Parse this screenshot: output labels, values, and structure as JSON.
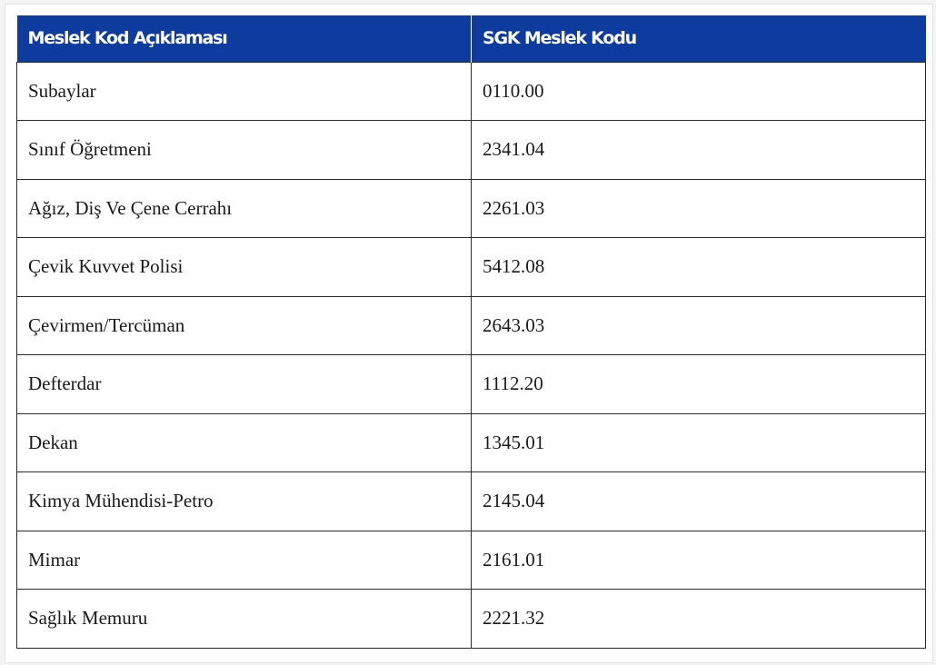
{
  "table": {
    "headers": [
      "Meslek Kod Açıklaması",
      "SGK Meslek Kodu"
    ],
    "rows": [
      [
        "Subaylar",
        "0110.00"
      ],
      [
        "Sınıf Öğretmeni",
        "2341.04"
      ],
      [
        "Ağız, Diş Ve Çene Cerrahı",
        "2261.03"
      ],
      [
        "Çevik Kuvvet Polisi",
        "5412.08"
      ],
      [
        "Çevirmen/Tercüman",
        "2643.03"
      ],
      [
        "Defterdar",
        "1112.20"
      ],
      [
        "Dekan",
        "1345.01"
      ],
      [
        "Kimya Mühendisi-Petro",
        "2145.04"
      ],
      [
        "Mimar",
        "2161.01"
      ],
      [
        "Sağlık Memuru",
        "2221.32"
      ]
    ]
  },
  "colors": {
    "header_background": "#0d3b9e",
    "header_text": "#ffffff",
    "border": "#2a2a2a"
  }
}
